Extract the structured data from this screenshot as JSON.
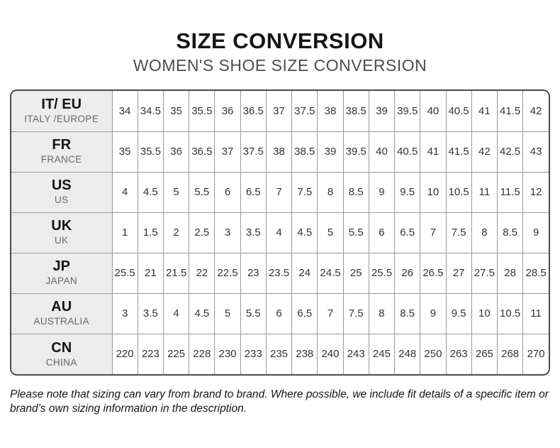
{
  "chart_data": {
    "type": "table",
    "title": "SIZE CONVERSION",
    "subtitle": "WOMEN'S SHOE SIZE CONVERSION",
    "legend_position": "none",
    "grid": true,
    "rows": [
      {
        "code": "IT/ EU",
        "region": "ITALY /EUROPE",
        "sizes": [
          "34",
          "34.5",
          "35",
          "35.5",
          "36",
          "36.5",
          "37",
          "37.5",
          "38",
          "38.5",
          "39",
          "39.5",
          "40",
          "40.5",
          "41",
          "41.5",
          "42"
        ]
      },
      {
        "code": "FR",
        "region": "FRANCE",
        "sizes": [
          "35",
          "35.5",
          "36",
          "36.5",
          "37",
          "37.5",
          "38",
          "38.5",
          "39",
          "39.5",
          "40",
          "40.5",
          "41",
          "41.5",
          "42",
          "42.5",
          "43"
        ]
      },
      {
        "code": "US",
        "region": "US",
        "sizes": [
          "4",
          "4.5",
          "5",
          "5.5",
          "6",
          "6.5",
          "7",
          "7.5",
          "8",
          "8.5",
          "9",
          "9.5",
          "10",
          "10.5",
          "11",
          "11.5",
          "12"
        ]
      },
      {
        "code": "UK",
        "region": "UK",
        "sizes": [
          "1",
          "1.5",
          "2",
          "2.5",
          "3",
          "3.5",
          "4",
          "4.5",
          "5",
          "5.5",
          "6",
          "6.5",
          "7",
          "7.5",
          "8",
          "8.5",
          "9"
        ]
      },
      {
        "code": "JP",
        "region": "JAPAN",
        "sizes": [
          "25.5",
          "21",
          "21.5",
          "22",
          "22.5",
          "23",
          "23.5",
          "24",
          "24.5",
          "25",
          "25.5",
          "26",
          "26.5",
          "27",
          "27.5",
          "28",
          "28.5"
        ]
      },
      {
        "code": "AU",
        "region": "AUSTRALIA",
        "sizes": [
          "3",
          "3.5",
          "4",
          "4.5",
          "5",
          "5.5",
          "6",
          "6.5",
          "7",
          "7.5",
          "8",
          "8.5",
          "9",
          "9.5",
          "10",
          "10.5",
          "11"
        ]
      },
      {
        "code": "CN",
        "region": "CHINA",
        "sizes": [
          "220",
          "223",
          "225",
          "228",
          "230",
          "233",
          "235",
          "238",
          "240",
          "243",
          "245",
          "248",
          "250",
          "263",
          "265",
          "268",
          "270"
        ]
      }
    ],
    "footnote": "Please note that sizing can vary from brand to brand. Where possible, we include fit details of a specific item or brand’s own sizing information in the description."
  },
  "colors": {
    "title_text": "#161616",
    "subtitle_text": "#4d4d4d",
    "header_cell_bg": "#ececec",
    "region_text": "#666666",
    "cell_text": "#333333",
    "grid_line": "#999999",
    "outer_border": "#4a4a4a",
    "page_bg": "#ffffff"
  }
}
